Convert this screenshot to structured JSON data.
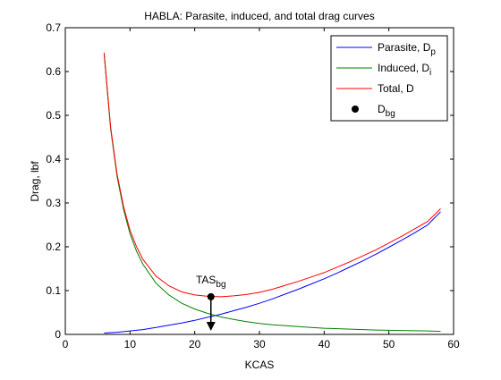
{
  "chart_data": {
    "type": "line",
    "title": "HABLA: Parasite, induced, and total drag curves",
    "xlabel": "KCAS",
    "ylabel": "Drag, lbf",
    "xlim": [
      0,
      60
    ],
    "ylim": [
      0,
      0.7
    ],
    "xticks": [
      0,
      10,
      20,
      30,
      40,
      50,
      60
    ],
    "yticks": [
      0,
      0.1,
      0.2,
      0.3,
      0.4,
      0.5,
      0.6,
      0.7
    ],
    "xtick_labels": [
      "0",
      "10",
      "20",
      "30",
      "40",
      "50",
      "60"
    ],
    "ytick_labels": [
      "0",
      "0.1",
      "0.2",
      "0.3",
      "0.4",
      "0.5",
      "0.6",
      "0.7"
    ],
    "grid": false,
    "legend_position": "top-right",
    "series": [
      {
        "name": "Parasite, D",
        "name_sub": "p",
        "color": "#0000ff",
        "x": [
          6,
          8,
          10,
          12,
          14,
          16,
          18,
          20,
          22,
          24,
          26,
          28,
          30,
          32,
          34,
          36,
          38,
          40,
          42,
          44,
          46,
          48,
          50,
          52,
          54,
          56,
          58
        ],
        "values": [
          0.003,
          0.005,
          0.008,
          0.011,
          0.016,
          0.021,
          0.026,
          0.032,
          0.039,
          0.046,
          0.054,
          0.062,
          0.071,
          0.081,
          0.092,
          0.103,
          0.115,
          0.127,
          0.14,
          0.154,
          0.168,
          0.183,
          0.199,
          0.215,
          0.232,
          0.25,
          0.28
        ]
      },
      {
        "name": "Induced, D",
        "name_sub": "i",
        "color": "#008000",
        "x": [
          6,
          7,
          8,
          9,
          10,
          11,
          12,
          14,
          16,
          18,
          20,
          22,
          24,
          26,
          28,
          30,
          32,
          34,
          36,
          38,
          40,
          44,
          48,
          52,
          56,
          58
        ],
        "values": [
          0.64,
          0.47,
          0.36,
          0.285,
          0.23,
          0.19,
          0.16,
          0.117,
          0.09,
          0.071,
          0.058,
          0.048,
          0.04,
          0.034,
          0.029,
          0.025,
          0.022,
          0.02,
          0.018,
          0.016,
          0.014,
          0.012,
          0.01,
          0.009,
          0.008,
          0.007
        ]
      },
      {
        "name": "Total, D",
        "color": "#ff0000",
        "x": [
          6,
          7,
          8,
          9,
          10,
          11,
          12,
          14,
          16,
          18,
          20,
          22,
          24,
          26,
          28,
          30,
          32,
          34,
          36,
          38,
          40,
          44,
          48,
          52,
          56,
          58
        ],
        "values": [
          0.643,
          0.474,
          0.365,
          0.292,
          0.238,
          0.2,
          0.171,
          0.133,
          0.111,
          0.097,
          0.09,
          0.087,
          0.086,
          0.088,
          0.091,
          0.096,
          0.103,
          0.112,
          0.121,
          0.131,
          0.141,
          0.166,
          0.193,
          0.224,
          0.258,
          0.287
        ]
      }
    ],
    "marker": {
      "name": "D",
      "name_sub": "bg",
      "x": 22.5,
      "y": 0.086,
      "color": "#000000"
    },
    "annotation": {
      "text": "TAS",
      "text_sub": "bg",
      "x": 22.5,
      "arrow_to_y": 0
    }
  }
}
